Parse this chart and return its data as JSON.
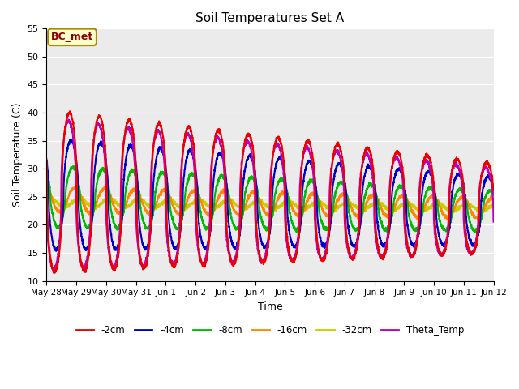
{
  "title": "Soil Temperatures Set A",
  "xlabel": "Time",
  "ylabel": "Soil Temperature (C)",
  "ylim": [
    10,
    55
  ],
  "annotation": "BC_met",
  "bg_color": "#ebebeb",
  "fig_bg": "#ffffff",
  "lines": {
    "-2cm": {
      "color": "#ee0000",
      "lw": 1.5
    },
    "-4cm": {
      "color": "#0000cc",
      "lw": 1.5
    },
    "-8cm": {
      "color": "#00bb00",
      "lw": 1.5
    },
    "-16cm": {
      "color": "#ff8800",
      "lw": 1.5
    },
    "-32cm": {
      "color": "#cccc00",
      "lw": 1.5
    },
    "Theta_Temp": {
      "color": "#bb00bb",
      "lw": 1.5
    }
  },
  "xtick_labels": [
    "May 28",
    "May 29",
    "May 30",
    "May 31",
    "Jun 1",
    "Jun 2",
    "Jun 3",
    "Jun 4",
    "Jun 5",
    "Jun 6",
    "Jun 7",
    "Jun 8",
    "Jun 9",
    "Jun 10",
    "Jun 11",
    "Jun 12"
  ],
  "xtick_positions": [
    0,
    1,
    2,
    3,
    4,
    5,
    6,
    7,
    8,
    9,
    10,
    11,
    12,
    13,
    14,
    15
  ],
  "yticks": [
    10,
    15,
    20,
    25,
    30,
    35,
    40,
    45,
    50,
    55
  ]
}
